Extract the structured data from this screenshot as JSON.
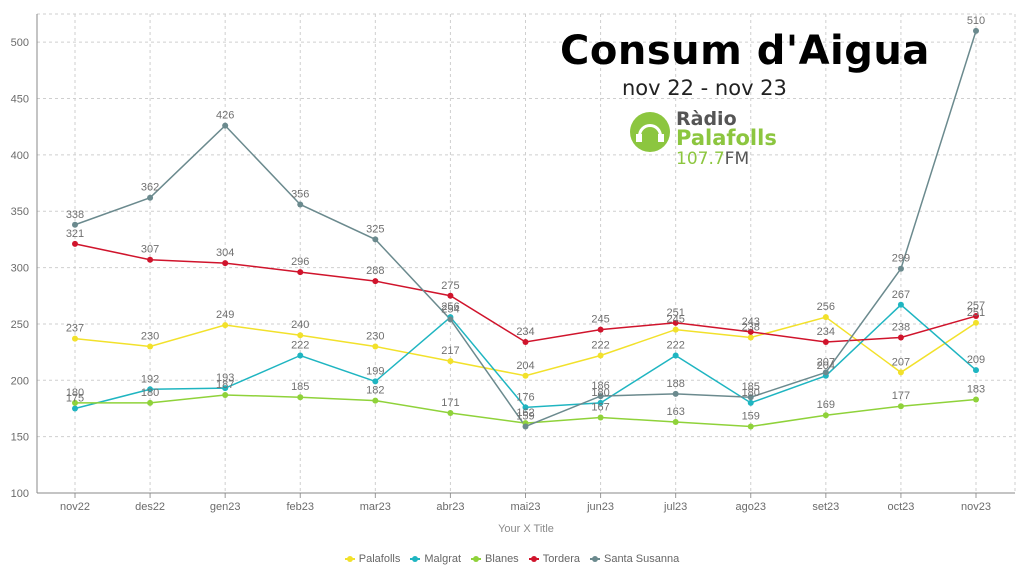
{
  "title": "Consum d'Aigua",
  "subtitle": "nov 22 - nov 23",
  "logo": {
    "line1": "Ràdio",
    "line2": "Palafolls",
    "freq": "107.7",
    "fm": "FM",
    "icon": "radio-logo-icon",
    "color": "#8cc63f"
  },
  "chart_data": {
    "type": "line",
    "categories": [
      "nov22",
      "des22",
      "gen23",
      "feb23",
      "mar23",
      "abr23",
      "mai23",
      "jun23",
      "jul23",
      "ago23",
      "set23",
      "oct23",
      "nov23"
    ],
    "xlabel": "Your X Title",
    "ylabel": "",
    "ylim": [
      100,
      525
    ],
    "yticks": [
      100,
      150,
      200,
      250,
      300,
      350,
      400,
      450,
      500
    ],
    "grid": true,
    "legend_position": "bottom",
    "series": [
      {
        "name": "Palafolls",
        "color": "#f2e12b",
        "values": [
          237,
          230,
          249,
          240,
          230,
          217,
          204,
          222,
          245,
          238,
          256,
          207,
          251
        ]
      },
      {
        "name": "Malgrat",
        "color": "#1fb5c1",
        "values": [
          175,
          192,
          193,
          222,
          199,
          256,
          176,
          180,
          222,
          180,
          204,
          267,
          209
        ]
      },
      {
        "name": "Blanes",
        "color": "#8fd23a",
        "values": [
          180,
          180,
          187,
          185,
          182,
          171,
          162,
          167,
          163,
          159,
          169,
          177,
          183
        ]
      },
      {
        "name": "Tordera",
        "color": "#d0142c",
        "values": [
          321,
          307,
          304,
          296,
          288,
          275,
          234,
          245,
          251,
          243,
          234,
          238,
          257
        ]
      },
      {
        "name": "Santa Susanna",
        "color": "#6b8a8e",
        "values": [
          338,
          362,
          426,
          356,
          325,
          254,
          159,
          186,
          188,
          185,
          207,
          299,
          510
        ]
      }
    ]
  }
}
